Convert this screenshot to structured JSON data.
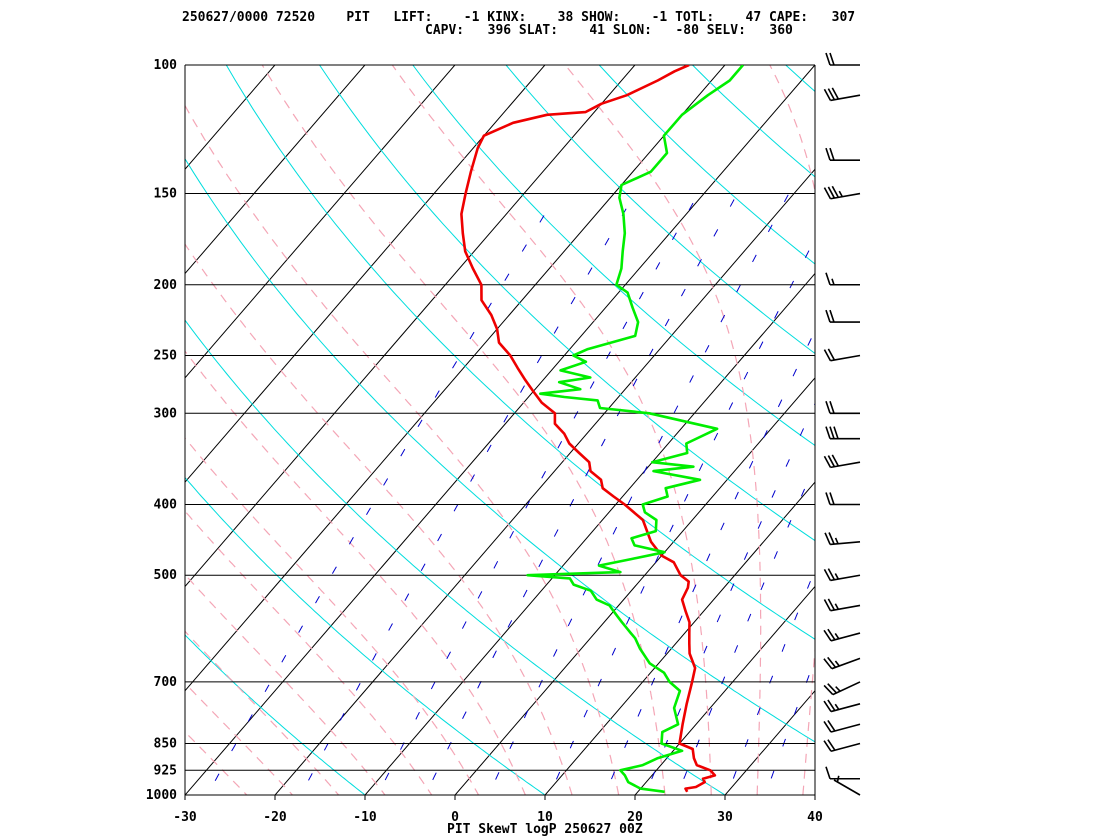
{
  "header": {
    "line1": "250627/0000 72520    PIT   LIFT:    -1 KINX:    38 SHOW:    -1 TOTL:    47 CAPE:   307",
    "line2": "CAPV:   396 SLAT:    41 SLON:   -80 SELV:   360"
  },
  "chart_data": {
    "type": "line",
    "title": "PIT SkewT logP 250627 00Z",
    "xlabel": "",
    "ylabel": "",
    "xlim": [
      -30,
      40
    ],
    "ylim": [
      1000,
      100
    ],
    "y_scale": "log",
    "x_ticks": [
      "-30",
      "-20",
      "-10",
      "0",
      "10",
      "20",
      "30",
      "40"
    ],
    "y_ticks": [
      "100",
      "150",
      "200",
      "250",
      "300",
      "400",
      "500",
      "700",
      "850",
      "925",
      "1000"
    ],
    "colors": {
      "temperature": "#ee0000",
      "dewpoint": "#00ee00",
      "dry_adiabat": "#00dddd",
      "moist_adiabat": "#f4a6b6",
      "mixing_ratio": "#0000cc",
      "isotherm": "#000000",
      "isobar": "#000000",
      "wind_barb": "#000000"
    },
    "series": [
      {
        "key": "temperature",
        "points": [
          [
            25.5,
            990
          ],
          [
            25,
            980
          ],
          [
            26,
            975
          ],
          [
            26.5,
            960
          ],
          [
            26,
            950
          ],
          [
            27,
            940
          ],
          [
            26,
            925
          ],
          [
            24,
            910
          ],
          [
            23,
            890
          ],
          [
            22,
            865
          ],
          [
            20,
            850
          ],
          [
            18.5,
            800
          ],
          [
            17,
            750
          ],
          [
            15.5,
            700
          ],
          [
            14.5,
            670
          ],
          [
            12.5,
            640
          ],
          [
            11.5,
            620
          ],
          [
            10.5,
            600
          ],
          [
            9.5,
            580
          ],
          [
            8,
            560
          ],
          [
            6.5,
            540
          ],
          [
            6,
            520
          ],
          [
            5.5,
            510
          ],
          [
            4,
            500
          ],
          [
            3,
            490
          ],
          [
            2,
            480
          ],
          [
            0,
            470
          ],
          [
            -2.5,
            450
          ],
          [
            -5.5,
            420
          ],
          [
            -9,
            400
          ],
          [
            -11,
            390
          ],
          [
            -13,
            380
          ],
          [
            -14,
            370
          ],
          [
            -16,
            360
          ],
          [
            -17,
            350
          ],
          [
            -19,
            340
          ],
          [
            -21,
            330
          ],
          [
            -22.5,
            320
          ],
          [
            -24.5,
            310
          ],
          [
            -25.5,
            300
          ],
          [
            -28,
            290
          ],
          [
            -30,
            280
          ],
          [
            -32,
            270
          ],
          [
            -34,
            260
          ],
          [
            -36,
            250
          ],
          [
            -38.5,
            240
          ],
          [
            -40,
            230
          ],
          [
            -42,
            220
          ],
          [
            -44.5,
            210
          ],
          [
            -46,
            200
          ],
          [
            -48.5,
            190
          ],
          [
            -51,
            180
          ],
          [
            -53,
            170
          ],
          [
            -55,
            160
          ],
          [
            -56.5,
            150
          ],
          [
            -58,
            140
          ],
          [
            -59.5,
            130
          ],
          [
            -60,
            125
          ],
          [
            -58,
            120
          ],
          [
            -55,
            117
          ],
          [
            -51,
            116
          ],
          [
            -50,
            113
          ],
          [
            -48,
            110
          ],
          [
            -46,
            105
          ],
          [
            -45,
            102
          ],
          [
            -44,
            100
          ]
        ]
      },
      {
        "key": "dewpoint",
        "points": [
          [
            23,
            990
          ],
          [
            20,
            980
          ],
          [
            19,
            970
          ],
          [
            18,
            960
          ],
          [
            17,
            940
          ],
          [
            16,
            925
          ],
          [
            18,
            910
          ],
          [
            19,
            890
          ],
          [
            21,
            870
          ],
          [
            18,
            850
          ],
          [
            17,
            820
          ],
          [
            18,
            800
          ],
          [
            16,
            760
          ],
          [
            15,
            720
          ],
          [
            13,
            700
          ],
          [
            11.5,
            680
          ],
          [
            9,
            660
          ],
          [
            6.5,
            630
          ],
          [
            5,
            610
          ],
          [
            4,
            600
          ],
          [
            3,
            590
          ],
          [
            2,
            580
          ],
          [
            1,
            570
          ],
          [
            0,
            560
          ],
          [
            -1,
            550
          ],
          [
            -3,
            540
          ],
          [
            -4.5,
            525
          ],
          [
            -7,
            515
          ],
          [
            -8,
            505
          ],
          [
            -13,
            500
          ],
          [
            -3,
            495
          ],
          [
            -6,
            485
          ],
          [
            -3,
            475
          ],
          [
            0,
            465
          ],
          [
            -4,
            455
          ],
          [
            -5,
            445
          ],
          [
            -3,
            435
          ],
          [
            -4,
            420
          ],
          [
            -6,
            410
          ],
          [
            -7,
            400
          ],
          [
            -5,
            390
          ],
          [
            -6,
            380
          ],
          [
            -3,
            370
          ],
          [
            -9,
            360
          ],
          [
            -5,
            355
          ],
          [
            -10,
            350
          ],
          [
            -7,
            340
          ],
          [
            -8,
            330
          ],
          [
            -6,
            315
          ],
          [
            -15,
            300
          ],
          [
            -21,
            295
          ],
          [
            -22,
            288
          ],
          [
            -26,
            285
          ],
          [
            -29,
            282
          ],
          [
            -25,
            278
          ],
          [
            -28,
            272
          ],
          [
            -25,
            268
          ],
          [
            -29,
            262
          ],
          [
            -27,
            255
          ],
          [
            -29,
            250
          ],
          [
            -28,
            245
          ],
          [
            -24,
            235
          ],
          [
            -25,
            225
          ],
          [
            -27,
            215
          ],
          [
            -29,
            205
          ],
          [
            -31,
            200
          ],
          [
            -32,
            190
          ],
          [
            -33.5,
            180
          ],
          [
            -35,
            170
          ],
          [
            -37,
            160
          ],
          [
            -39,
            152
          ],
          [
            -40,
            146
          ],
          [
            -38,
            140
          ],
          [
            -38,
            132
          ],
          [
            -40,
            125
          ],
          [
            -40,
            120
          ],
          [
            -40,
            117
          ],
          [
            -39,
            110
          ],
          [
            -38,
            105
          ],
          [
            -38,
            100
          ]
        ]
      }
    ],
    "winds": [
      {
        "p": 1000,
        "dir": 300,
        "spd": 5
      },
      {
        "p": 950,
        "dir": 270,
        "spd": 10
      },
      {
        "p": 850,
        "dir": 255,
        "spd": 20
      },
      {
        "p": 800,
        "dir": 255,
        "spd": 20
      },
      {
        "p": 750,
        "dir": 255,
        "spd": 25
      },
      {
        "p": 700,
        "dir": 245,
        "spd": 25
      },
      {
        "p": 650,
        "dir": 250,
        "spd": 25
      },
      {
        "p": 600,
        "dir": 255,
        "spd": 25
      },
      {
        "p": 550,
        "dir": 260,
        "spd": 25
      },
      {
        "p": 500,
        "dir": 260,
        "spd": 25
      },
      {
        "p": 450,
        "dir": 265,
        "spd": 25
      },
      {
        "p": 400,
        "dir": 270,
        "spd": 20
      },
      {
        "p": 350,
        "dir": 260,
        "spd": 30
      },
      {
        "p": 325,
        "dir": 270,
        "spd": 30
      },
      {
        "p": 300,
        "dir": 270,
        "spd": 20
      },
      {
        "p": 250,
        "dir": 260,
        "spd": 20
      },
      {
        "p": 225,
        "dir": 270,
        "spd": 20
      },
      {
        "p": 200,
        "dir": 270,
        "spd": 15
      },
      {
        "p": 150,
        "dir": 260,
        "spd": 35
      },
      {
        "p": 135,
        "dir": 270,
        "spd": 20
      },
      {
        "p": 110,
        "dir": 260,
        "spd": 30
      },
      {
        "p": 100,
        "dir": 270,
        "spd": 20
      }
    ]
  }
}
